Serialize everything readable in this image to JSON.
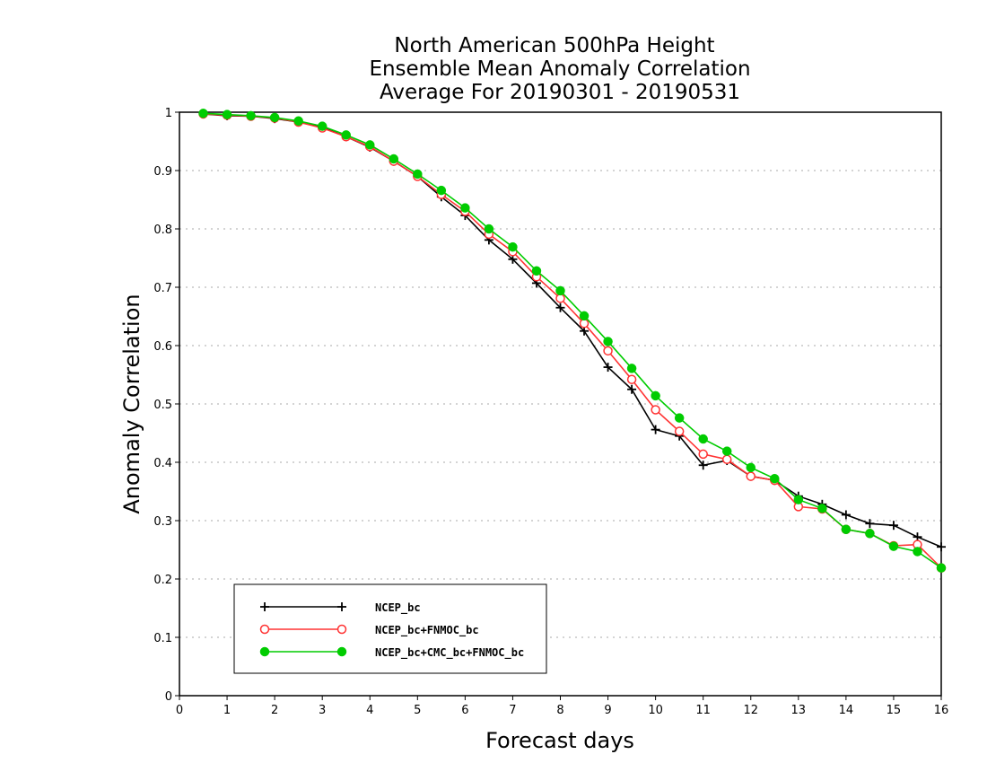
{
  "chart_data": {
    "type": "line",
    "title_lines": [
      "North American 500hPa Height",
      "Ensemble Mean Anomaly Correlation",
      "Average For 20190301 - 20190531"
    ],
    "xlabel": "Forecast days",
    "ylabel": "Anomaly Correlation",
    "xlim": [
      0,
      16
    ],
    "ylim": [
      0,
      1
    ],
    "xticks": [
      0,
      1,
      2,
      3,
      4,
      5,
      6,
      7,
      8,
      9,
      10,
      11,
      12,
      13,
      14,
      15,
      16
    ],
    "yticks": [
      0,
      0.1,
      0.2,
      0.3,
      0.4,
      0.5,
      0.6,
      0.7,
      0.8,
      0.9,
      1
    ],
    "ytick_labels": [
      "0",
      "0.1",
      "0.2",
      "0.3",
      "0.4",
      "0.5",
      "0.6",
      "0.7",
      "0.8",
      "0.9",
      "1"
    ],
    "grid": "horizontal-dotted",
    "legend_position": "bottom-left",
    "x": [
      0.5,
      1,
      1.5,
      2,
      2.5,
      3,
      3.5,
      4,
      4.5,
      5,
      5.5,
      6,
      6.5,
      7,
      7.5,
      8,
      8.5,
      9,
      9.5,
      10,
      10.5,
      11,
      11.5,
      12,
      12.5,
      13,
      13.5,
      14,
      14.5,
      15,
      15.5,
      16
    ],
    "series": [
      {
        "name": "NCEP_bc",
        "color": "#000000",
        "marker": "plus",
        "values": [
          0.997,
          0.994,
          0.993,
          0.989,
          0.983,
          0.974,
          0.958,
          0.94,
          0.916,
          0.89,
          0.855,
          0.823,
          0.781,
          0.748,
          0.707,
          0.665,
          0.625,
          0.563,
          0.525,
          0.456,
          0.445,
          0.395,
          0.403,
          0.376,
          0.369,
          0.342,
          0.328,
          0.31,
          0.295,
          0.292,
          0.272,
          0.255
        ]
      },
      {
        "name": "NCEP_bc+FNMOC_bc",
        "color": "#ff3333",
        "marker": "open-circle",
        "values": [
          0.997,
          0.995,
          0.993,
          0.99,
          0.983,
          0.973,
          0.958,
          0.941,
          0.916,
          0.89,
          0.859,
          0.83,
          0.791,
          0.761,
          0.718,
          0.681,
          0.638,
          0.591,
          0.542,
          0.49,
          0.453,
          0.414,
          0.405,
          0.376,
          0.369,
          0.324,
          0.32,
          0.285,
          0.278,
          0.257,
          0.259,
          0.219
        ]
      },
      {
        "name": "NCEP_bc+CMC_bc+FNMOC_bc",
        "color": "#00cc00",
        "marker": "filled-circle",
        "values": [
          0.998,
          0.996,
          0.994,
          0.991,
          0.985,
          0.976,
          0.961,
          0.944,
          0.92,
          0.894,
          0.866,
          0.836,
          0.8,
          0.769,
          0.728,
          0.694,
          0.651,
          0.607,
          0.561,
          0.514,
          0.476,
          0.44,
          0.419,
          0.391,
          0.372,
          0.336,
          0.321,
          0.285,
          0.278,
          0.256,
          0.247,
          0.219
        ]
      }
    ]
  }
}
